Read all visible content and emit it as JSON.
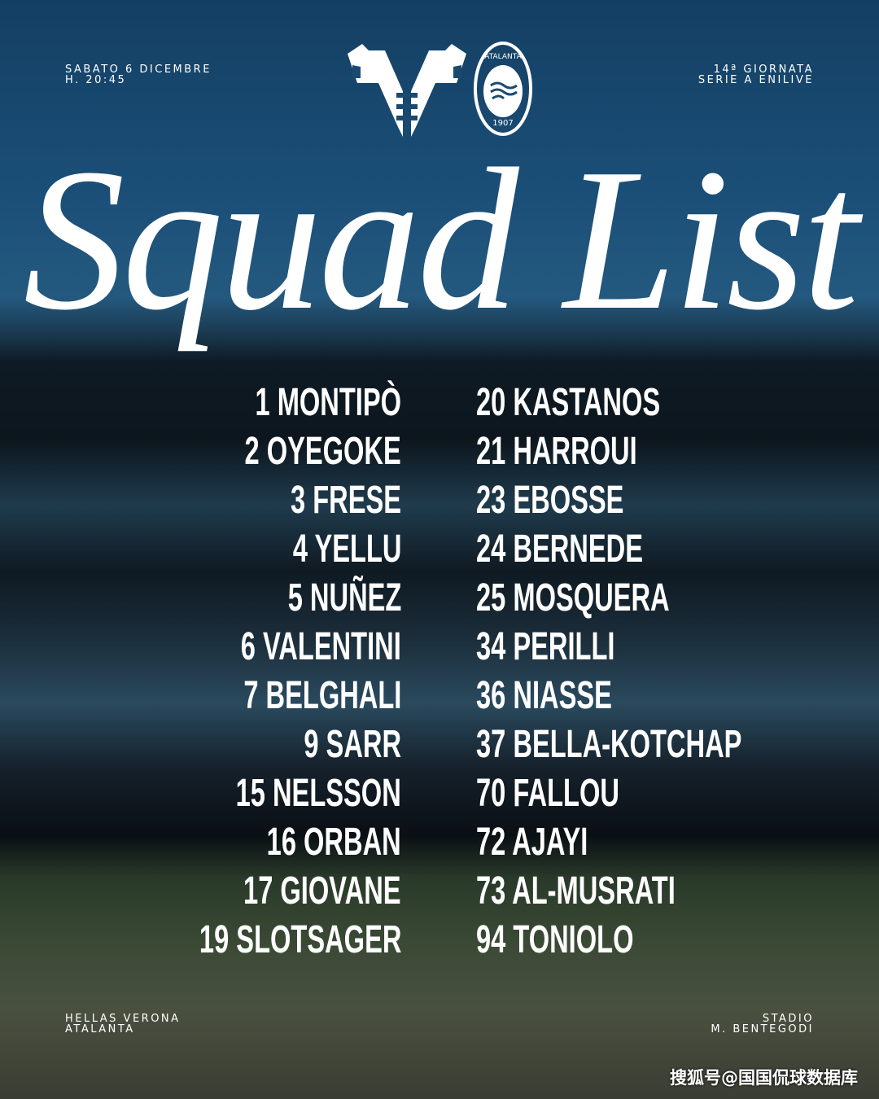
{
  "header": {
    "date": "SABATO 6 DICEMBRE",
    "time": "H. 20:45",
    "round": "14ª GIORNATA",
    "competition": "SERIE A ENILIVE"
  },
  "logos": {
    "home": "hellas-verona-crest",
    "away": "atalanta-crest",
    "away_text": "ATALANTA",
    "away_year": "1907"
  },
  "title": "Squad List",
  "squad_left": [
    "1 MONTIPÒ",
    "2 OYEGOKE",
    "3 FRESE",
    "4 YELLU",
    "5 NUÑEZ",
    "6 VALENTINI",
    "7 BELGHALI",
    "9 SARR",
    "15 NELSSON",
    "16 ORBAN",
    "17 GIOVANE",
    "19 SLOTSAGER"
  ],
  "squad_right": [
    "20 KASTANOS",
    "21 HARROUI",
    "23 EBOSSE",
    "24 BERNEDE",
    "25 MOSQUERA",
    "34 PERILLI",
    "36 NIASSE",
    "37 BELLA-KOTCHAP",
    "70 FALLOU",
    "72 AJAYI",
    "73 AL-MUSRATI",
    "94 TONIOLO"
  ],
  "footer": {
    "teams": [
      "HELLAS VERONA",
      "ATALANTA"
    ],
    "venue": [
      "STADIO",
      "M. BENTEGODI"
    ]
  },
  "watermark": "搜狐号@国国侃球数据库"
}
